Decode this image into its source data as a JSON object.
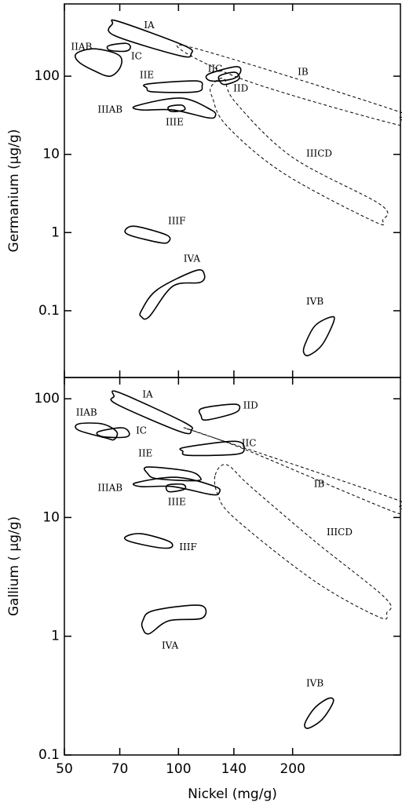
{
  "chart_data": [
    {
      "type": "region",
      "ylabel": "Germanium (μg/g)",
      "xscale": "log",
      "yscale": "log",
      "xlim": [
        50,
        385
      ],
      "ylim": [
        0.014,
        840
      ],
      "xticks": [
        50,
        70,
        100,
        140,
        200
      ],
      "yticks": [
        0.1,
        1,
        10,
        100
      ],
      "color": "#000000",
      "regions": [
        {
          "name": "IA",
          "dashed": false,
          "x": [
            67.0,
            69.6,
            103.6,
            108,
            101.3,
            67.6
          ],
          "y": [
            470,
            500,
            246,
            195,
            182,
            333
          ],
          "label_xy": [
            83.7,
            445
          ]
        },
        {
          "name": "IIAB",
          "dashed": false,
          "x": [
            53.8,
            60,
            69.6,
            70.3,
            66,
            60,
            54.5
          ],
          "y": [
            195,
            224,
            186,
            132,
            100,
            117,
            153
          ],
          "label_xy": [
            55.5,
            235
          ]
        },
        {
          "name": "IC",
          "dashed": false,
          "x": [
            65.4,
            72.6,
            74.7,
            72.6,
            66
          ],
          "y": [
            245,
            263,
            235,
            209,
            214
          ],
          "label_xy": [
            77.5,
            178
          ]
        },
        {
          "name": "IIE",
          "dashed": false,
          "x": [
            82.9,
            111,
            115.4,
            111,
            85.7,
            82.5
          ],
          "y": [
            79.4,
            87,
            74,
            63,
            63,
            70.7
          ],
          "label_xy": [
            82.5,
            102
          ]
        },
        {
          "name": "IIC",
          "dashed": false,
          "x": [
            119.5,
            141,
            146,
            139.5,
            122
          ],
          "y": [
            105,
            132,
            117,
            93,
            87
          ],
          "label_xy": [
            124.9,
            123
          ]
        },
        {
          "name": "IID",
          "dashed": false,
          "x": [
            128,
            141,
            144.5,
            137,
            130.5
          ],
          "y": [
            100,
            112,
            93,
            81,
            79.4
          ],
          "label_xy": [
            146,
            69
          ]
        },
        {
          "name": "IIIAB",
          "dashed": false,
          "x": [
            77.2,
            101.3,
            122,
            125,
            119.5,
            96.6,
            79.8
          ],
          "y": [
            41.6,
            52.5,
            37,
            30.8,
            29.4,
            37,
            37
          ],
          "label_xy": [
            66,
            37
          ]
        },
        {
          "name": "IIIE",
          "dashed": false,
          "x": [
            94.3,
            102,
            103.6,
            95.6
          ],
          "y": [
            40.7,
            42.6,
            37,
            35.4
          ],
          "label_xy": [
            97.7,
            25.6
          ]
        },
        {
          "name": "IB",
          "dashed": true,
          "x": [
            103.6,
            370,
            383,
            372,
            146
          ],
          "y": [
            246,
            37,
            29.4,
            24.4,
            93
          ],
          "label_xy": [
            213,
            112
          ]
        },
        {
          "name": "IIICD",
          "dashed": true,
          "x": [
            122,
            131.7,
            141,
            199,
            340,
            346,
            326.5,
            188.6,
            134,
            123
          ],
          "y": [
            74,
            93,
            47,
            9.3,
            2.3,
            1.46,
            1.4,
            5.8,
            23.3,
            52.5
          ],
          "label_xy": [
            235,
            10.2
          ]
        },
        {
          "name": "IIIF",
          "dashed": false,
          "x": [
            72.6,
            77.2,
            93,
            94.3,
            89.6,
            74.2
          ],
          "y": [
            1.1,
            1.2,
            0.93,
            0.77,
            0.74,
            0.93
          ],
          "label_xy": [
            99,
            1.4
          ]
        },
        {
          "name": "IVA",
          "dashed": false,
          "x": [
            79.8,
            87.8,
            111,
            117,
            114,
            96.6,
            83.7,
            79.8
          ],
          "y": [
            0.1,
            0.185,
            0.326,
            0.29,
            0.23,
            0.206,
            0.084,
            0.084
          ],
          "label_xy": [
            108.5,
            0.46
          ]
        },
        {
          "name": "IVB",
          "dashed": false,
          "x": [
            215.6,
            229,
            252,
            257,
            239.6,
            221,
            214
          ],
          "y": [
            0.037,
            0.064,
            0.083,
            0.074,
            0.037,
            0.027,
            0.029
          ],
          "label_xy": [
            229,
            0.13
          ]
        }
      ]
    },
    {
      "type": "region",
      "xlabel": "Nickel (mg/g)",
      "ylabel": "Gallium ( μg/g)",
      "xscale": "log",
      "yscale": "log",
      "xlim": [
        50,
        385
      ],
      "ylim": [
        0.1,
        151
      ],
      "xticks": [
        50,
        70,
        100,
        140,
        200
      ],
      "yticks": [
        0.1,
        1,
        10,
        100
      ],
      "color": "#000000",
      "regions": [
        {
          "name": "IA",
          "dashed": false,
          "x": [
            67.6,
            69.6,
            103.6,
            108,
            101.3,
            68.7
          ],
          "y": [
            104.7,
            113,
            63.2,
            54.3,
            52.7,
            89.9
          ],
          "label_xy": [
            82.9,
            108
          ]
        },
        {
          "name": "IIAB",
          "dashed": false,
          "x": [
            54.5,
            62.9,
            68.7,
            67.6,
            64.4,
            54.5
          ],
          "y": [
            61.4,
            61.4,
            52.7,
            45.3,
            46.7,
            54.3
          ],
          "label_xy": [
            57.2,
            76
          ]
        },
        {
          "name": "IC",
          "dashed": false,
          "x": [
            61.4,
            71,
            74.2,
            72,
            62.9
          ],
          "y": [
            52.7,
            56.9,
            51.1,
            47.4,
            48
          ],
          "label_xy": [
            79.8,
            53.5
          ]
        },
        {
          "name": "IID",
          "dashed": false,
          "x": [
            115.4,
            141,
            144.5,
            137,
            118,
            114.8
          ],
          "y": [
            83,
            89.9,
            80.8,
            73.7,
            66.2,
            71.5
          ],
          "label_xy": [
            155,
            87
          ]
        },
        {
          "name": "IIC",
          "dashed": false,
          "x": [
            103.6,
            141,
            149,
            141,
            106,
            102.7
          ],
          "y": [
            38.9,
            43.8,
            37.7,
            34,
            33.4,
            36.1
          ],
          "label_xy": [
            153.4,
            42
          ]
        },
        {
          "name": "IB",
          "dashed": true,
          "x": [
            108,
            370,
            383,
            372,
            149
          ],
          "y": [
            54.3,
            14.4,
            12.4,
            11.1,
            37.7
          ],
          "label_xy": [
            235,
            19
          ]
        },
        {
          "name": "IIE",
          "dashed": false,
          "x": [
            82.9,
            106,
            114,
            111,
            87.8,
            82.9
          ],
          "y": [
            26.6,
            24.6,
            21.8,
            20.4,
            21.2,
            23.5
          ],
          "label_xy": [
            81.8,
            34.4
          ]
        },
        {
          "name": "IIIAB",
          "dashed": false,
          "x": [
            77.2,
            99,
            125,
            128,
            122,
            96.6,
            79.8
          ],
          "y": [
            19.6,
            21.8,
            18.2,
            16.2,
            15.6,
            18.2,
            18.2
          ],
          "label_xy": [
            66,
            17.6
          ]
        },
        {
          "name": "IIIE",
          "dashed": false,
          "x": [
            93.5,
            102.7,
            103.6,
            94.3
          ],
          "y": [
            18.7,
            19,
            17.3,
            16.5
          ],
          "label_xy": [
            99,
            13.4
          ]
        },
        {
          "name": "IIICD",
          "dashed": true,
          "x": [
            125,
            134,
            155,
            229,
            351,
            354.6,
            338,
            229,
            141,
            127
          ],
          "y": [
            22.8,
            27.8,
            18.2,
            6.3,
            2.1,
            1.58,
            1.45,
            2.9,
            9.8,
            15.6
          ],
          "label_xy": [
            266,
            7.5
          ]
        },
        {
          "name": "IIIF",
          "dashed": false,
          "x": [
            72.6,
            79.8,
            94.3,
            95.6,
            87.8,
            74.2
          ],
          "y": [
            6.9,
            7.3,
            6.3,
            5.6,
            5.6,
            6.3
          ],
          "label_xy": [
            106,
            5.6
          ]
        },
        {
          "name": "IVA",
          "dashed": false,
          "x": [
            80.5,
            85.7,
            114,
            115.4,
            94.3,
            83.7,
            80.5
          ],
          "y": [
            1.35,
            1.64,
            1.82,
            1.42,
            1.35,
            1.05,
            1.16
          ],
          "label_xy": [
            95,
            0.83
          ]
        },
        {
          "name": "IVB",
          "dashed": false,
          "x": [
            215.6,
            229,
            249,
            256,
            239.6,
            220
          ],
          "y": [
            0.185,
            0.25,
            0.3,
            0.28,
            0.2,
            0.168
          ],
          "label_xy": [
            229,
            0.4
          ]
        }
      ]
    }
  ]
}
